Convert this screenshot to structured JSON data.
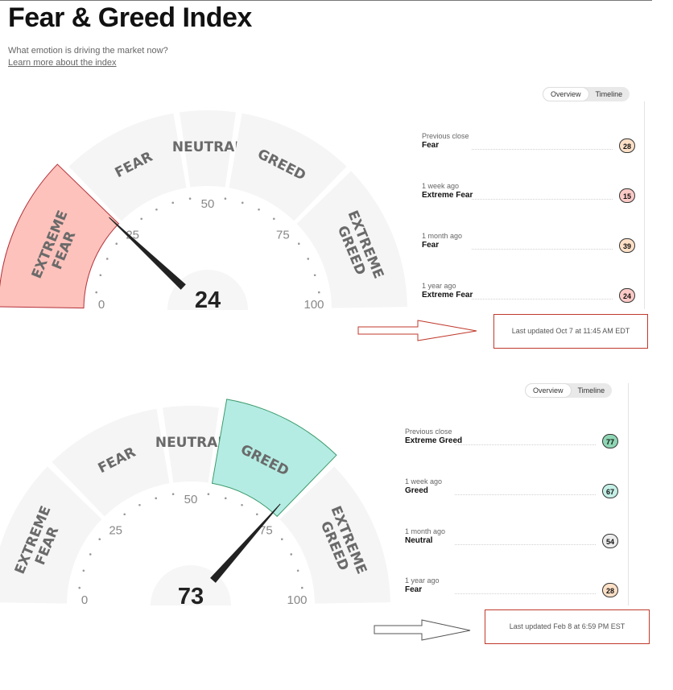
{
  "page": {
    "title": "Fear & Greed Index",
    "subtitle": "What emotion is driving the market now?",
    "learn_more": "Learn more about the index"
  },
  "gauges": [
    {
      "value": 24,
      "active_band": "extreme_fear",
      "bands": {
        "extreme_fear": [
          "EXTREME",
          "FEAR"
        ],
        "fear": [
          "FEAR"
        ],
        "neutral": [
          "NEUTRAL"
        ],
        "greed": [
          "GREED"
        ],
        "extreme_greed": [
          "EXTREME",
          "GREED"
        ]
      },
      "ticks": [
        "0",
        "25",
        "50",
        "75",
        "100"
      ],
      "value_label": "24",
      "colors": {
        "active_fill": "#fcc2bb",
        "active_stroke": "#b4303a",
        "band_fill": "#f5f5f5"
      },
      "toggle": {
        "overview": "Overview",
        "timeline": "Timeline"
      },
      "history": [
        {
          "label": "Previous close",
          "rating": "Fear",
          "score": "28",
          "color": "#fde0c6"
        },
        {
          "label": "1 week ago",
          "rating": "Extreme Fear",
          "score": "15",
          "color": "#fbc9c6"
        },
        {
          "label": "1 month ago",
          "rating": "Fear",
          "score": "39",
          "color": "#fde0c6"
        },
        {
          "label": "1 year ago",
          "rating": "Extreme Fear",
          "score": "24",
          "color": "#fbc9c6"
        }
      ],
      "last_updated": "Last updated Oct 7 at 11:45 AM EDT"
    },
    {
      "value": 73,
      "active_band": "greed",
      "bands": {
        "extreme_fear": [
          "EXTREME",
          "FEAR"
        ],
        "fear": [
          "FEAR"
        ],
        "neutral": [
          "NEUTRAL"
        ],
        "greed": [
          "GREED"
        ],
        "extreme_greed": [
          "EXTREME",
          "GREED"
        ]
      },
      "ticks": [
        "0",
        "25",
        "50",
        "75",
        "100"
      ],
      "value_label": "73",
      "colors": {
        "active_fill": "#b4ece3",
        "active_stroke": "#3d9a6d",
        "band_fill": "#f5f5f5"
      },
      "toggle": {
        "overview": "Overview",
        "timeline": "Timeline"
      },
      "history": [
        {
          "label": "Previous close",
          "rating": "Extreme Greed",
          "score": "77",
          "color": "#8fd6b4"
        },
        {
          "label": "1 week ago",
          "rating": "Greed",
          "score": "67",
          "color": "#c4efe6"
        },
        {
          "label": "1 month ago",
          "rating": "Neutral",
          "score": "54",
          "color": "#ececec"
        },
        {
          "label": "1 year ago",
          "rating": "Fear",
          "score": "28",
          "color": "#fde0c6"
        }
      ],
      "last_updated": "Last updated Feb 8 at 6:59 PM EST"
    }
  ]
}
